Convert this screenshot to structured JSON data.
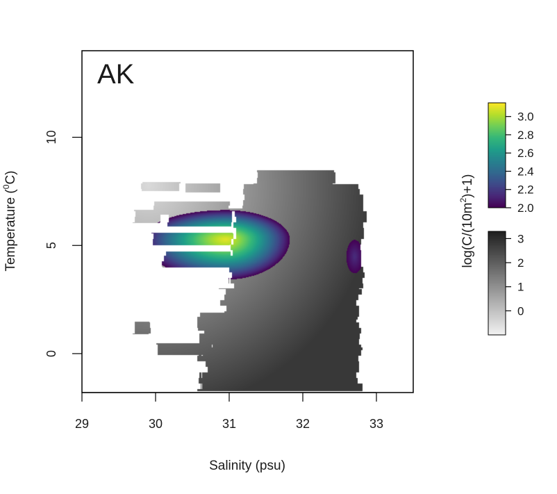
{
  "chart_data": {
    "type": "heatmap",
    "panel_label": "AK",
    "xlabel": "Salinity (psu)",
    "ylabel": {
      "main": "Temperature (",
      "sup": "0",
      "tail": "C)"
    },
    "xlim": [
      29,
      33.5
    ],
    "ylim": [
      -1.8,
      14
    ],
    "x_ticks": [
      29,
      30,
      31,
      32,
      33
    ],
    "x_tick_labels": [
      "29",
      "30",
      "31",
      "32",
      "33"
    ],
    "y_ticks": [
      0,
      5,
      10
    ],
    "y_tick_labels": [
      "0",
      "5",
      "10"
    ],
    "colorbar_label": {
      "pre": "log(C/(10m",
      "sup": "2",
      "post": ")+1)"
    },
    "colorbar_color": {
      "palette": "viridis",
      "range": [
        2.0,
        3.15
      ],
      "ticks": [
        2.0,
        2.2,
        2.4,
        2.6,
        2.8,
        3.0
      ],
      "tick_labels": [
        "2.0",
        "2.2",
        "2.4",
        "2.6",
        "2.8",
        "3.0"
      ]
    },
    "colorbar_gray": {
      "palette": "gray",
      "range": [
        -1,
        3.3
      ],
      "ticks": [
        0,
        1,
        2,
        3
      ],
      "tick_labels": [
        "0",
        "1",
        "2",
        "3"
      ]
    },
    "hotspots": [
      {
        "center_salinity": 30.95,
        "center_temperature": 5.3,
        "peak_value": 3.1
      },
      {
        "center_salinity": 32.7,
        "center_temperature": 4.5,
        "peak_value": 2.1
      }
    ],
    "gray_background": {
      "high_salinity": 31.3,
      "high_temperature": -1.5,
      "peak_value": 2.8,
      "low_salinity": 29.9,
      "low_temperature": 7.8,
      "low_value": -0.5
    },
    "colors": {
      "frame": "#000000",
      "background": "#ffffff"
    }
  }
}
